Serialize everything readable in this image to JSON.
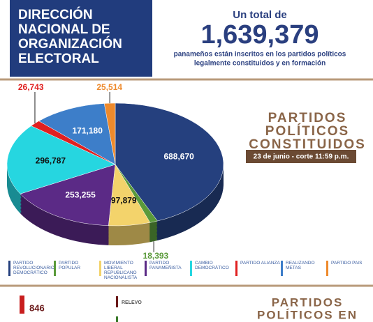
{
  "header": {
    "title_lines": [
      "DIRECCIÓN",
      "NACIONAL DE",
      "ORGANIZACIÓN",
      "ELECTORAL"
    ],
    "total_intro": "Un total de",
    "total": "1,639,379",
    "total_text_lines": [
      "panameños están inscritos en los partidos políticos",
      "legalmente constituidos y en formación"
    ]
  },
  "chart_data": {
    "type": "pie",
    "title_lines": [
      "PARTIDOS",
      "POLÍTICOS",
      "CONSTITUIDOS"
    ],
    "subtitle": "23 de junio - corte 11:59 p.m.",
    "categories": [
      "PARTIDO REVOLUCIONARIO DEMOCRÁTICO",
      "PARTIDO POPULAR",
      "MOVIMIENTO LIBERAL REPUBLICANO NACIONALISTA",
      "PARTIDO PANAMEÑISTA",
      "CAMBIO DEMOCRÁTICO",
      "PARTIDO ALIANZA",
      "REALIZANDO METAS",
      "PARTIDO PAIS"
    ],
    "values": [
      688670,
      18393,
      97879,
      253255,
      296787,
      26743,
      171180,
      25514
    ],
    "value_labels": [
      "688,670",
      "18,393",
      "97,879",
      "253,255",
      "296,787",
      "26,743",
      "171,180",
      "25,514"
    ],
    "colors": [
      "#25407e",
      "#5a9a3a",
      "#f3d36b",
      "#5b2a86",
      "#26d6e0",
      "#e02020",
      "#3d7ec9",
      "#ee8a2c"
    ]
  },
  "footer": {
    "count": "846",
    "item_1": "RELEVO",
    "title_lines": [
      "PARTIDOS",
      "POLÍTICOS EN"
    ]
  }
}
